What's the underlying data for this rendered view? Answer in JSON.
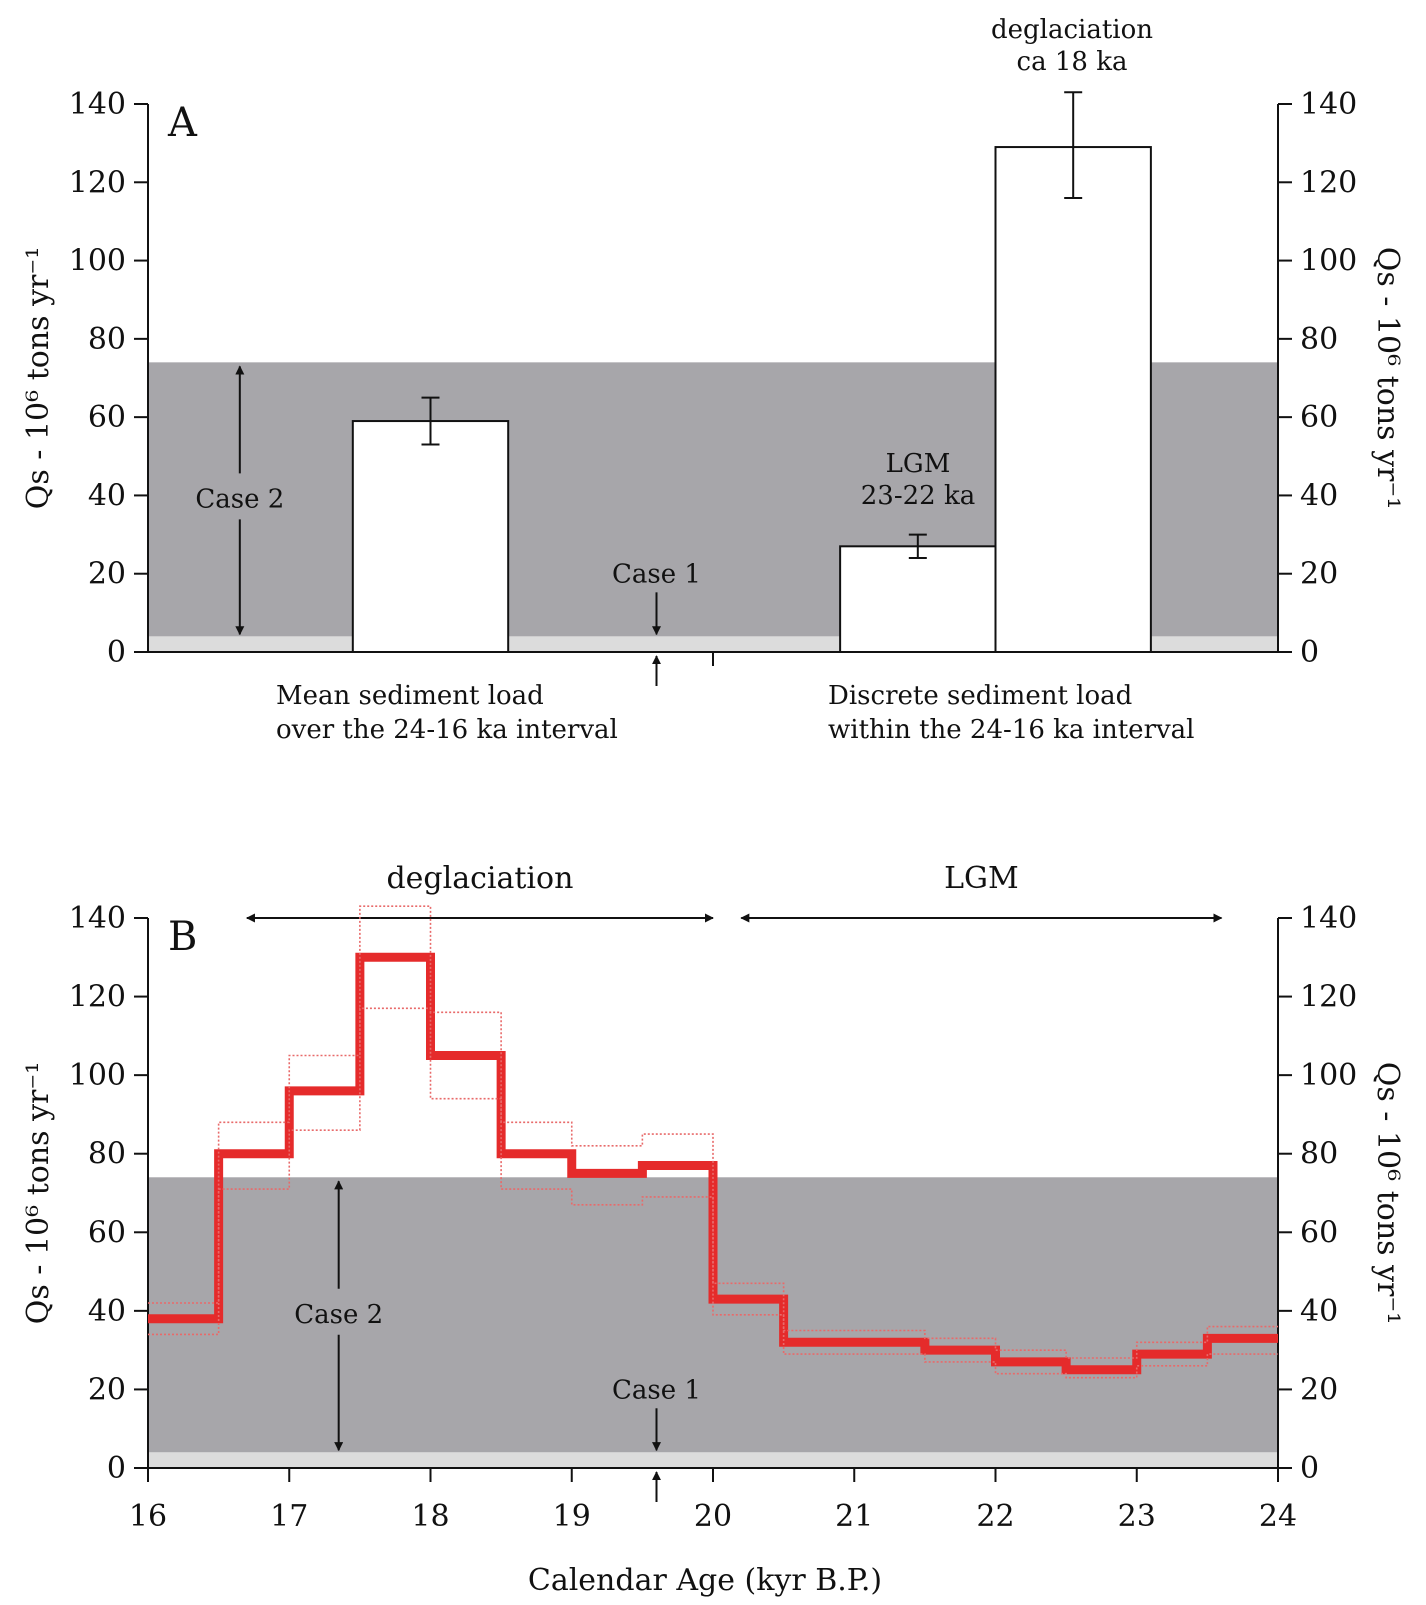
{
  "figure": {
    "x_axis_title": "Calendar Age (kyr B.P.)"
  },
  "colors": {
    "shade": "#a7a6aa",
    "shade_floor": "#dcdcdc",
    "bar_fill": "#ffffff",
    "line_main": "#e52b2b",
    "line_bounds": "#e86a6a",
    "ink": "#111111"
  },
  "chart_data": [
    {
      "type": "bar",
      "panel": "A",
      "ylabel_left": "Qs - 10⁶ tons yr⁻¹",
      "ylabel_right": "Qs - 10⁶ tons yr⁻¹",
      "ylim": [
        0,
        140
      ],
      "yticks": [
        0,
        20,
        40,
        60,
        80,
        100,
        120,
        140
      ],
      "x_domain": [
        16,
        24
      ],
      "shaded_band": {
        "from": 4,
        "to": 74,
        "label": "Case 2"
      },
      "case1_value": 4,
      "case1_label": "Case 1",
      "bars": [
        {
          "x_start": 17.45,
          "x_end": 18.55,
          "value": 59,
          "error_low": 53,
          "error_high": 65
        },
        {
          "x_start": 20.9,
          "x_end": 22.0,
          "value": 27,
          "error_low": 24,
          "error_high": 30
        },
        {
          "x_start": 22.0,
          "x_end": 23.1,
          "value": 129,
          "error_low": 116,
          "error_high": 143
        }
      ],
      "annotations": {
        "lgm_line1": "LGM",
        "lgm_line2": "23-22 ka",
        "deglac_line1": "deglaciation",
        "deglac_line2": "ca 18 ka",
        "mean_line1": "Mean sediment load",
        "mean_line2": "over the 24-16 ka interval",
        "discrete_line1": "Discrete sediment load",
        "discrete_line2": "within the 24-16 ka interval"
      }
    },
    {
      "type": "line",
      "panel": "B",
      "xlabel": "Calendar Age (kyr B.P.)",
      "ylabel_left": "Qs - 10⁶ tons yr⁻¹",
      "ylabel_right": "Qs - 10⁶ tons yr⁻¹",
      "xlim": [
        16,
        24
      ],
      "xticks": [
        16,
        17,
        18,
        19,
        20,
        21,
        22,
        23,
        24
      ],
      "ylim": [
        0,
        140
      ],
      "yticks": [
        0,
        20,
        40,
        60,
        80,
        100,
        120,
        140
      ],
      "shaded_band": {
        "from": 4,
        "to": 74,
        "label": "Case 2"
      },
      "case1_value": 4,
      "case1_label": "Case 1",
      "periods": [
        {
          "label": "deglaciation",
          "from": 16.7,
          "to": 20.0
        },
        {
          "label": "LGM",
          "from": 20.2,
          "to": 23.6
        }
      ],
      "bin_edges": [
        16,
        16.5,
        17,
        17.5,
        18,
        18.5,
        19,
        19.5,
        20,
        20.5,
        21,
        21.5,
        22,
        22.5,
        23,
        23.5,
        24
      ],
      "series": [
        {
          "role": "mean",
          "values": [
            38,
            80,
            96,
            130,
            105,
            80,
            75,
            77,
            43,
            32,
            32,
            30,
            27,
            25,
            29,
            33
          ]
        },
        {
          "role": "upper",
          "values": [
            42,
            88,
            105,
            143,
            116,
            88,
            82,
            85,
            47,
            35,
            35,
            33,
            30,
            28,
            32,
            36
          ]
        },
        {
          "role": "lower",
          "values": [
            34,
            71,
            86,
            117,
            94,
            71,
            67,
            69,
            39,
            29,
            29,
            27,
            24,
            23,
            26,
            29
          ]
        }
      ]
    }
  ]
}
